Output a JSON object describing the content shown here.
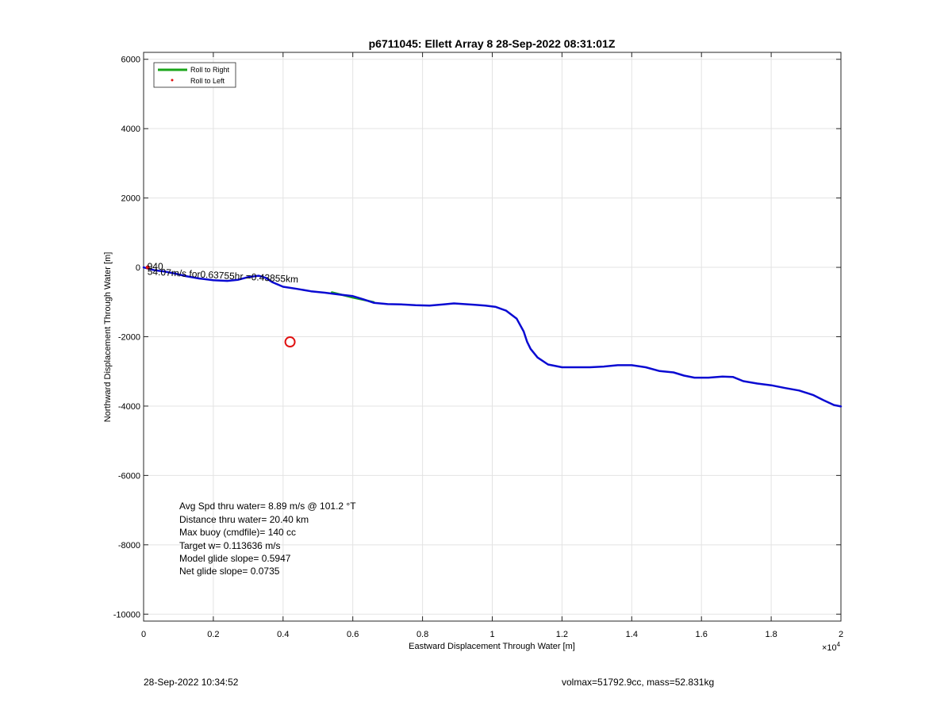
{
  "chart_data": {
    "type": "line",
    "title": "p6711045: Ellett Array 8 28-Sep-2022 08:31:01Z",
    "xlabel": "Eastward Displacement Through Water [m]",
    "ylabel": "Northward Displacement Through Water [m]",
    "x_exponent_label": "×10",
    "x_exponent_power": "4",
    "xlim": [
      0,
      20000
    ],
    "ylim": [
      -10200,
      6200
    ],
    "x_ticks": [
      0,
      2000,
      4000,
      6000,
      8000,
      10000,
      12000,
      14000,
      16000,
      18000,
      20000
    ],
    "x_tick_labels": [
      "0",
      "0.2",
      "0.4",
      "0.6",
      "0.8",
      "1",
      "1.2",
      "1.4",
      "1.6",
      "1.8",
      "2"
    ],
    "y_ticks": [
      6000,
      4000,
      2000,
      0,
      -2000,
      -4000,
      -6000,
      -8000,
      -10000
    ],
    "y_tick_labels": [
      "6000",
      "4000",
      "2000",
      "0",
      "-2000",
      "-4000",
      "-6000",
      "-8000",
      "-10000"
    ],
    "grid": true,
    "legend_position": "top-left",
    "legend": [
      {
        "label": "Roll to Right",
        "color": "#1aa51a",
        "style": "line"
      },
      {
        "label": "Roll to Left",
        "color": "#e01010",
        "style": "dot"
      }
    ],
    "series": [
      {
        "color": "#0a0ad2",
        "x": [
          0,
          300,
          600,
          900,
          1200,
          1600,
          2000,
          2400,
          2700,
          3000,
          3300,
          3500,
          3700,
          4000,
          4400,
          4800,
          5200,
          5600,
          6000,
          6300,
          6600,
          7000,
          7400,
          7800,
          8200,
          8600,
          8900,
          9200,
          9500,
          9800,
          10100,
          10400,
          10700,
          10900,
          11000,
          11100,
          11300,
          11600,
          12000,
          12400,
          12800,
          13200,
          13600,
          14000,
          14400,
          14800,
          15200,
          15500,
          15800,
          16200,
          16600,
          16900,
          17200,
          17600,
          18000,
          18400,
          18800,
          19200,
          19500,
          19800,
          20000
        ],
        "y": [
          0,
          -80,
          -120,
          -180,
          -250,
          -320,
          -370,
          -390,
          -360,
          -280,
          -240,
          -300,
          -430,
          -560,
          -620,
          -690,
          -730,
          -780,
          -830,
          -920,
          -1020,
          -1060,
          -1070,
          -1090,
          -1100,
          -1070,
          -1040,
          -1060,
          -1080,
          -1100,
          -1140,
          -1250,
          -1480,
          -1850,
          -2150,
          -2350,
          -2600,
          -2800,
          -2880,
          -2880,
          -2880,
          -2860,
          -2820,
          -2820,
          -2880,
          -2990,
          -3030,
          -3120,
          -3180,
          -3180,
          -3150,
          -3160,
          -3280,
          -3350,
          -3400,
          -3480,
          -3550,
          -3680,
          -3830,
          -3970,
          -4010
        ]
      },
      {
        "color": "#1aa51a",
        "x": [
          5400,
          6000,
          6600
        ],
        "y": [
          -720,
          -870,
          -1000
        ]
      }
    ],
    "markers": [
      {
        "type": "open-circle",
        "color": "#e01010",
        "x": 4200,
        "y": -2150
      },
      {
        "type": "dot",
        "color": "#e01010",
        "x": 120,
        "y": 0
      }
    ],
    "annotations": [
      {
        "text": "54.07m/s for0.63755hr =0.43855km",
        "x": 60,
        "y": -120
      },
      {
        "text": "940",
        "x": 60,
        "y": 20
      }
    ],
    "stats_lines": [
      "Avg Spd thru water=  8.89 m/s @ 101.2 °T",
      "Distance thru water= 20.40 km",
      "Max buoy (cmdfile)= 140 cc",
      "Target w= 0.113636 m/s",
      "Model glide slope= 0.5947",
      "Net glide slope= 0.0735"
    ]
  },
  "footer": {
    "left": "28-Sep-2022 10:34:52",
    "right": "volmax=51792.9cc, mass=52.831kg"
  }
}
